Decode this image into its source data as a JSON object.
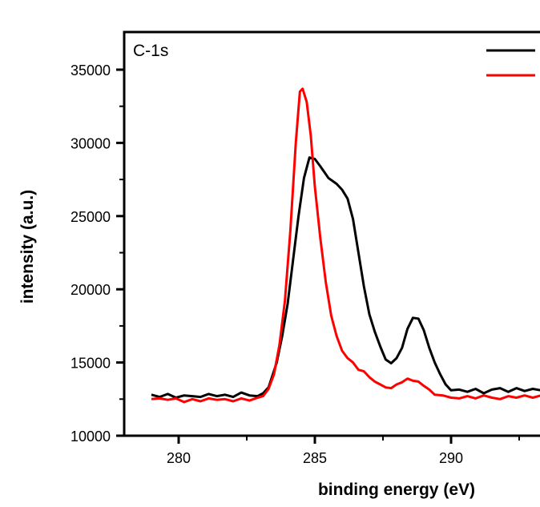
{
  "chart_data": {
    "type": "line",
    "title": "",
    "annotation": "C-1s",
    "xlabel": "binding energy (eV)",
    "ylabel": "intensity (a.u.)",
    "xlim": [
      278,
      293.3
    ],
    "ylim": [
      10000,
      37500
    ],
    "x_major_ticks": [
      280,
      285,
      290
    ],
    "x_minor_ticks": [
      282.5,
      287.5,
      292.5
    ],
    "y_major_ticks": [
      10000,
      15000,
      20000,
      25000,
      30000,
      35000
    ],
    "y_minor_ticks": [
      12500,
      17500,
      22500,
      27500,
      32500
    ],
    "x_tick_labels": [
      "280",
      "285",
      "290"
    ],
    "y_tick_labels": [
      "10000",
      "15000",
      "20000",
      "25000",
      "30000",
      "35000"
    ],
    "grid": false,
    "legend": {
      "placement": "top-right",
      "entries": [
        {
          "name": "",
          "color": "#000000"
        },
        {
          "name": "",
          "color": "#ff0000"
        }
      ]
    },
    "series": [
      {
        "name": "",
        "color": "#000000",
        "points": [
          [
            279.0,
            12800
          ],
          [
            279.3,
            12650
          ],
          [
            279.6,
            12850
          ],
          [
            279.9,
            12600
          ],
          [
            280.2,
            12750
          ],
          [
            280.5,
            12700
          ],
          [
            280.8,
            12650
          ],
          [
            281.1,
            12850
          ],
          [
            281.4,
            12700
          ],
          [
            281.7,
            12800
          ],
          [
            282.0,
            12650
          ],
          [
            282.3,
            12950
          ],
          [
            282.6,
            12750
          ],
          [
            282.9,
            12700
          ],
          [
            283.1,
            12900
          ],
          [
            283.3,
            13300
          ],
          [
            283.6,
            15000
          ],
          [
            283.8,
            16800
          ],
          [
            284.0,
            19000
          ],
          [
            284.2,
            22000
          ],
          [
            284.4,
            25000
          ],
          [
            284.6,
            27600
          ],
          [
            284.8,
            29000
          ],
          [
            285.0,
            28900
          ],
          [
            285.2,
            28400
          ],
          [
            285.5,
            27600
          ],
          [
            285.8,
            27200
          ],
          [
            286.0,
            26800
          ],
          [
            286.2,
            26200
          ],
          [
            286.4,
            24800
          ],
          [
            286.6,
            22500
          ],
          [
            286.8,
            20200
          ],
          [
            287.0,
            18300
          ],
          [
            287.2,
            17100
          ],
          [
            287.4,
            16100
          ],
          [
            287.6,
            15200
          ],
          [
            287.8,
            14950
          ],
          [
            288.0,
            15300
          ],
          [
            288.2,
            16000
          ],
          [
            288.4,
            17300
          ],
          [
            288.6,
            18050
          ],
          [
            288.8,
            18000
          ],
          [
            289.0,
            17200
          ],
          [
            289.2,
            16000
          ],
          [
            289.4,
            15000
          ],
          [
            289.6,
            14200
          ],
          [
            289.8,
            13500
          ],
          [
            290.0,
            13100
          ],
          [
            290.3,
            13150
          ],
          [
            290.6,
            13000
          ],
          [
            290.9,
            13200
          ],
          [
            291.2,
            12900
          ],
          [
            291.5,
            13150
          ],
          [
            291.8,
            13250
          ],
          [
            292.1,
            13000
          ],
          [
            292.4,
            13250
          ],
          [
            292.7,
            13050
          ],
          [
            293.0,
            13200
          ],
          [
            293.3,
            13100
          ]
        ]
      },
      {
        "name": "",
        "color": "#ff0000",
        "points": [
          [
            279.0,
            12500
          ],
          [
            279.3,
            12550
          ],
          [
            279.6,
            12450
          ],
          [
            279.9,
            12550
          ],
          [
            280.2,
            12300
          ],
          [
            280.5,
            12500
          ],
          [
            280.8,
            12350
          ],
          [
            281.1,
            12550
          ],
          [
            281.4,
            12450
          ],
          [
            281.7,
            12500
          ],
          [
            282.0,
            12350
          ],
          [
            282.3,
            12550
          ],
          [
            282.6,
            12400
          ],
          [
            282.9,
            12600
          ],
          [
            283.1,
            12700
          ],
          [
            283.3,
            13200
          ],
          [
            283.5,
            14200
          ],
          [
            283.7,
            16200
          ],
          [
            283.9,
            19200
          ],
          [
            284.1,
            24000
          ],
          [
            284.3,
            30000
          ],
          [
            284.45,
            33500
          ],
          [
            284.55,
            33700
          ],
          [
            284.7,
            32800
          ],
          [
            284.85,
            30500
          ],
          [
            285.0,
            27000
          ],
          [
            285.2,
            23500
          ],
          [
            285.4,
            20500
          ],
          [
            285.6,
            18200
          ],
          [
            285.8,
            16800
          ],
          [
            286.0,
            15800
          ],
          [
            286.2,
            15300
          ],
          [
            286.4,
            15000
          ],
          [
            286.6,
            14500
          ],
          [
            286.8,
            14400
          ],
          [
            287.0,
            14000
          ],
          [
            287.2,
            13700
          ],
          [
            287.4,
            13500
          ],
          [
            287.6,
            13300
          ],
          [
            287.8,
            13250
          ],
          [
            288.0,
            13500
          ],
          [
            288.2,
            13650
          ],
          [
            288.4,
            13900
          ],
          [
            288.6,
            13750
          ],
          [
            288.8,
            13700
          ],
          [
            289.0,
            13400
          ],
          [
            289.2,
            13150
          ],
          [
            289.4,
            12800
          ],
          [
            289.7,
            12750
          ],
          [
            290.0,
            12600
          ],
          [
            290.3,
            12550
          ],
          [
            290.6,
            12700
          ],
          [
            290.9,
            12550
          ],
          [
            291.2,
            12750
          ],
          [
            291.5,
            12600
          ],
          [
            291.8,
            12500
          ],
          [
            292.1,
            12700
          ],
          [
            292.4,
            12600
          ],
          [
            292.7,
            12750
          ],
          [
            293.0,
            12600
          ],
          [
            293.3,
            12750
          ]
        ]
      }
    ]
  }
}
